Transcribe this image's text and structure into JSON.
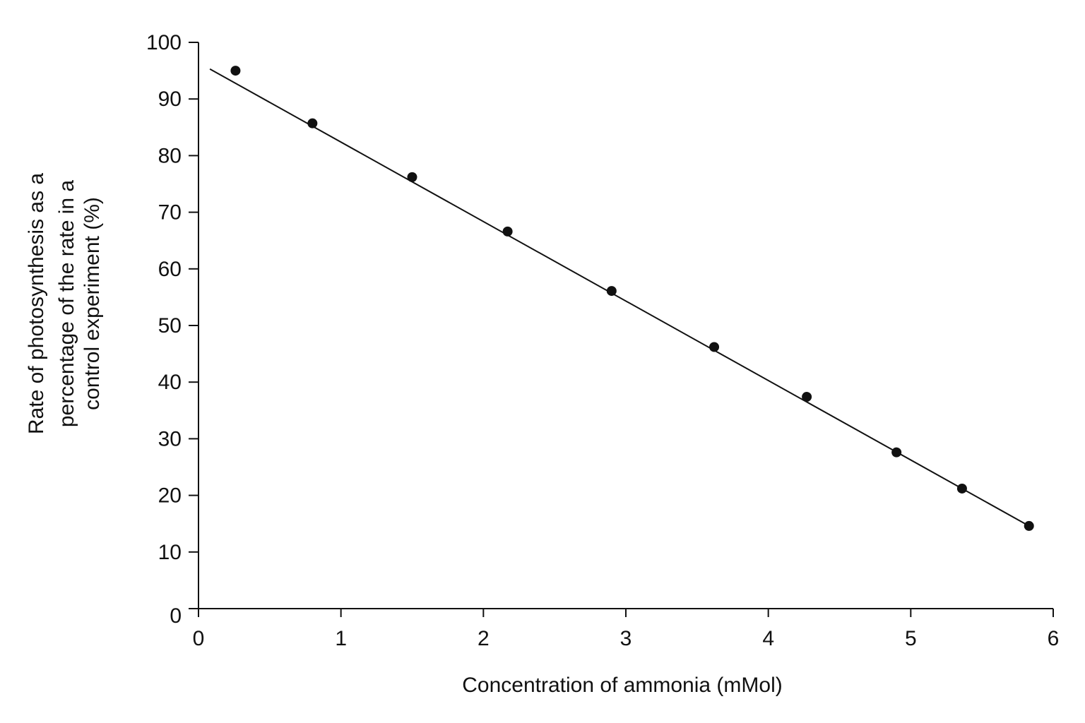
{
  "chart_data": {
    "type": "scatter",
    "title": "",
    "xlabel": "Concentration of ammonia (mMol)",
    "ylabel_lines": [
      "Rate of photosynthesis as a",
      "percentage of the rate in a",
      "control experiment (%)"
    ],
    "xlim": [
      0,
      6
    ],
    "ylim": [
      0,
      100
    ],
    "x_ticks": [
      0,
      1,
      2,
      3,
      4,
      5,
      6
    ],
    "y_ticks": [
      0,
      10,
      20,
      30,
      40,
      50,
      60,
      70,
      80,
      90,
      100
    ],
    "grid": false,
    "legend": "none",
    "series": [
      {
        "x": [
          0.26,
          0.8,
          1.5,
          2.17,
          2.9,
          3.62,
          4.27,
          4.9,
          5.36,
          5.83
        ],
        "y": [
          95,
          85.7,
          76.2,
          66.6,
          56.1,
          46.2,
          37.4,
          27.6,
          21.2,
          14.6
        ]
      }
    ],
    "trendline": {
      "x": [
        0.08,
        5.83
      ],
      "y": [
        95.3,
        14.6
      ]
    },
    "colors": {
      "line": "#111111",
      "marker": "#111111"
    }
  }
}
